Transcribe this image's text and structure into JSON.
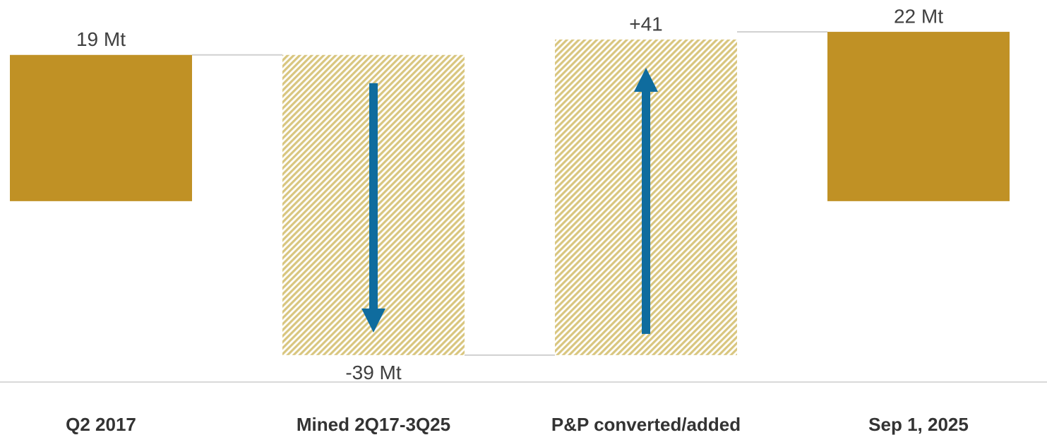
{
  "chart_data": {
    "type": "waterfall",
    "categories": [
      "Q2 2017",
      "Mined 2Q17-3Q25",
      "P&P converted/added",
      "Sep 1, 2025"
    ],
    "values": [
      19,
      -39,
      41,
      22
    ],
    "value_labels": [
      "19 Mt",
      "-39 Mt",
      "+41",
      "22 Mt"
    ],
    "bar_kinds": [
      "total",
      "change",
      "change",
      "total"
    ],
    "total_color": "#c09125",
    "change_color": "#d9c67f",
    "arrow_color": "#0f6c9e",
    "ylim": [
      -23.5,
      24.3
    ]
  }
}
